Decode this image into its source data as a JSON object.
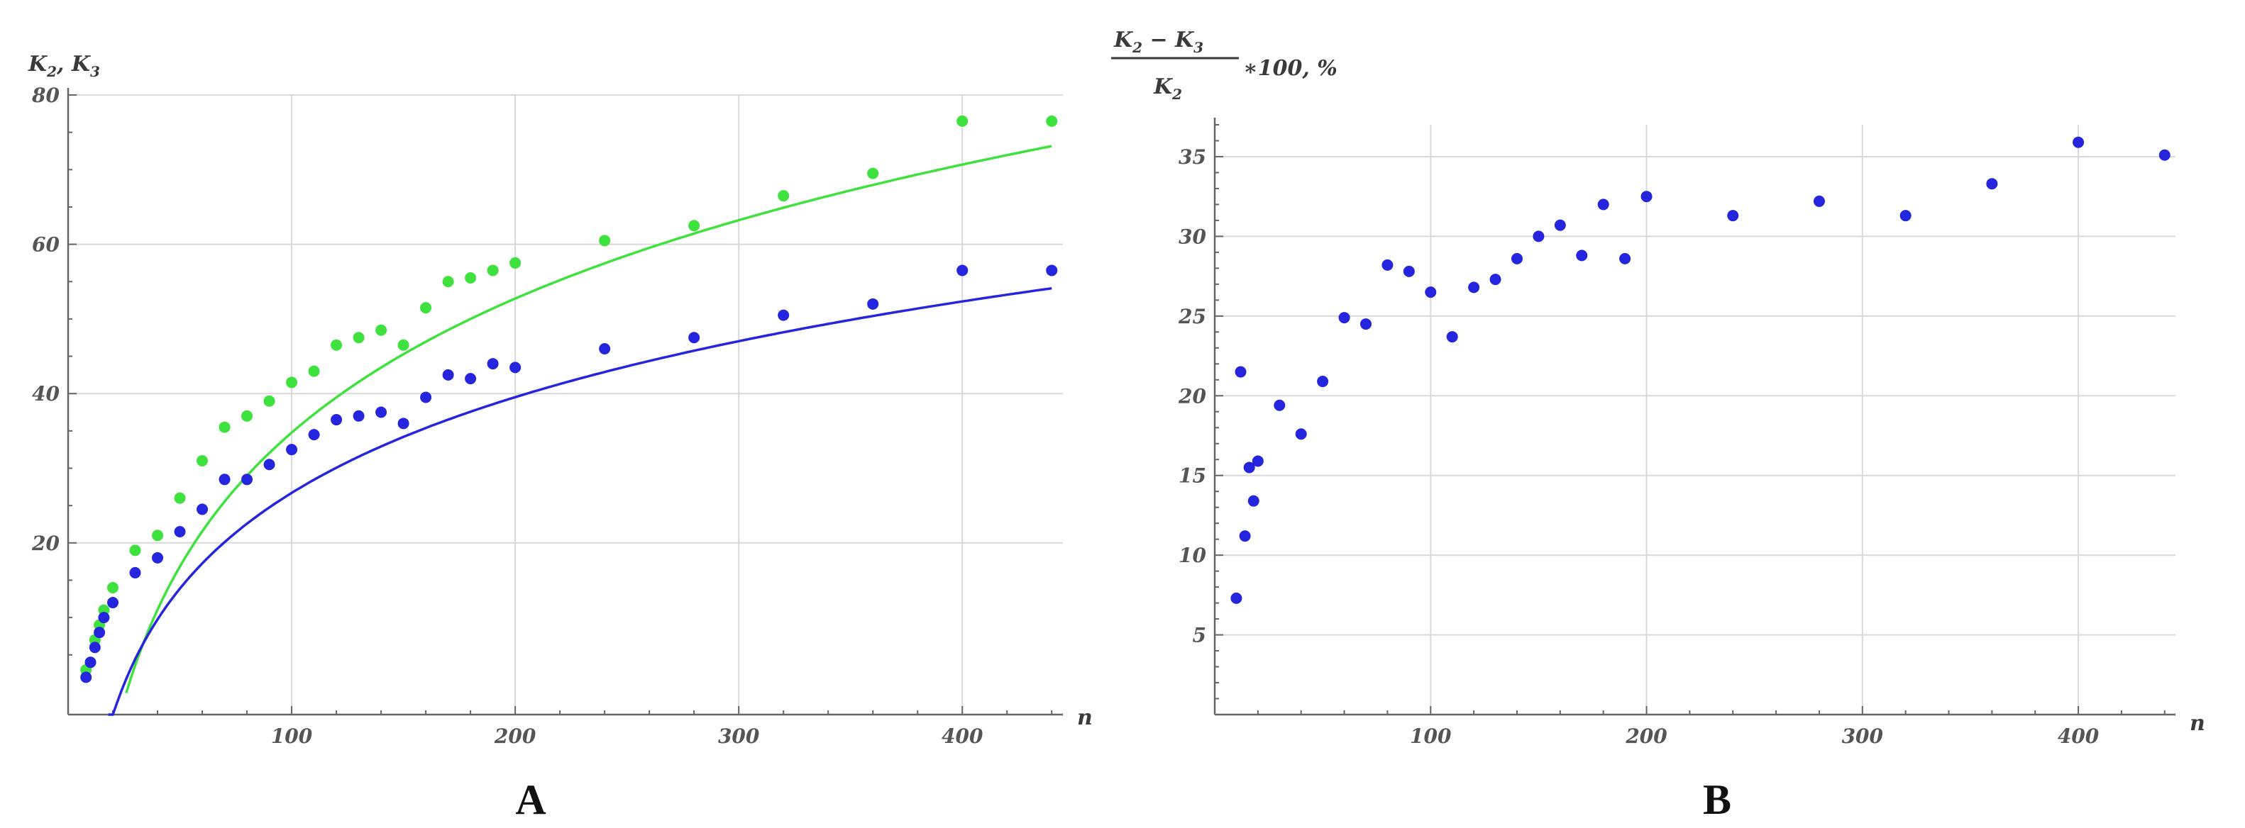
{
  "chart_data": [
    {
      "type": "scatter",
      "panel_label": "A",
      "xlabel": "n",
      "ylabel_parts": [
        "K",
        "2",
        ", K",
        "3"
      ],
      "xlim": [
        0,
        445
      ],
      "ylim": [
        -3,
        80
      ],
      "x_ticks": [
        100,
        200,
        300,
        400
      ],
      "y_ticks": [
        20,
        40,
        60,
        80
      ],
      "grid": true,
      "series": [
        {
          "color": "#3fe13f",
          "fit": {
            "form": "a + b*ln(n)",
            "a": -84.5,
            "b": 25.9,
            "x_range": [
              26,
              440
            ]
          },
          "points": [
            [
              8,
              3
            ],
            [
              10,
              4
            ],
            [
              12,
              7
            ],
            [
              14,
              9
            ],
            [
              16,
              11
            ],
            [
              20,
              14
            ],
            [
              30,
              19
            ],
            [
              40,
              21
            ],
            [
              50,
              26
            ],
            [
              60,
              31
            ],
            [
              70,
              35.5
            ],
            [
              80,
              37
            ],
            [
              90,
              39
            ],
            [
              100,
              41.5
            ],
            [
              110,
              43
            ],
            [
              120,
              46.5
            ],
            [
              130,
              47.5
            ],
            [
              140,
              48.5
            ],
            [
              150,
              46.5
            ],
            [
              160,
              51.5
            ],
            [
              170,
              55
            ],
            [
              180,
              55.5
            ],
            [
              190,
              56.5
            ],
            [
              200,
              57.5
            ],
            [
              240,
              60.5
            ],
            [
              280,
              62.5
            ],
            [
              320,
              66.5
            ],
            [
              360,
              69.5
            ],
            [
              400,
              76.5
            ],
            [
              440,
              76.5
            ]
          ]
        },
        {
          "color": "#2525dd",
          "fit": {
            "form": "a + b*ln(n)",
            "a": -58.5,
            "b": 18.5,
            "x_range": [
              18,
              440
            ]
          },
          "points": [
            [
              8,
              2
            ],
            [
              10,
              4
            ],
            [
              12,
              6
            ],
            [
              14,
              8
            ],
            [
              16,
              10
            ],
            [
              20,
              12
            ],
            [
              30,
              16
            ],
            [
              40,
              18
            ],
            [
              50,
              21.5
            ],
            [
              60,
              24.5
            ],
            [
              70,
              28.5
            ],
            [
              80,
              28.5
            ],
            [
              90,
              30.5
            ],
            [
              100,
              32.5
            ],
            [
              110,
              34.5
            ],
            [
              120,
              36.5
            ],
            [
              130,
              37
            ],
            [
              140,
              37.5
            ],
            [
              150,
              36
            ],
            [
              160,
              39.5
            ],
            [
              170,
              42.5
            ],
            [
              180,
              42
            ],
            [
              190,
              44
            ],
            [
              200,
              43.5
            ],
            [
              240,
              46
            ],
            [
              280,
              47.5
            ],
            [
              320,
              50.5
            ],
            [
              360,
              52
            ],
            [
              400,
              56.5
            ],
            [
              440,
              56.5
            ]
          ]
        }
      ]
    },
    {
      "type": "scatter",
      "panel_label": "B",
      "xlabel": "n",
      "ylabel_parts": [
        "K",
        "2",
        " − K",
        "3",
        "K",
        "2",
        "∗100, %"
      ],
      "xlim": [
        0,
        445
      ],
      "ylim": [
        0,
        37
      ],
      "x_ticks": [
        100,
        200,
        300,
        400
      ],
      "y_ticks": [
        5,
        10,
        15,
        20,
        25,
        30,
        35
      ],
      "grid": true,
      "series": [
        {
          "color": "#2525dd",
          "points": [
            [
              10,
              7.3
            ],
            [
              12,
              21.5
            ],
            [
              14,
              11.2
            ],
            [
              16,
              15.5
            ],
            [
              18,
              13.4
            ],
            [
              20,
              15.9
            ],
            [
              30,
              19.4
            ],
            [
              40,
              17.6
            ],
            [
              50,
              20.9
            ],
            [
              60,
              24.9
            ],
            [
              70,
              24.5
            ],
            [
              80,
              28.2
            ],
            [
              90,
              27.8
            ],
            [
              100,
              26.5
            ],
            [
              110,
              23.7
            ],
            [
              120,
              26.8
            ],
            [
              130,
              27.3
            ],
            [
              140,
              28.6
            ],
            [
              150,
              30
            ],
            [
              160,
              30.7
            ],
            [
              170,
              28.8
            ],
            [
              180,
              32
            ],
            [
              190,
              28.6
            ],
            [
              200,
              32.5
            ],
            [
              240,
              31.3
            ],
            [
              280,
              32.2
            ],
            [
              320,
              31.3
            ],
            [
              360,
              33.3
            ],
            [
              400,
              35.9
            ],
            [
              440,
              35.1
            ]
          ]
        }
      ]
    }
  ]
}
